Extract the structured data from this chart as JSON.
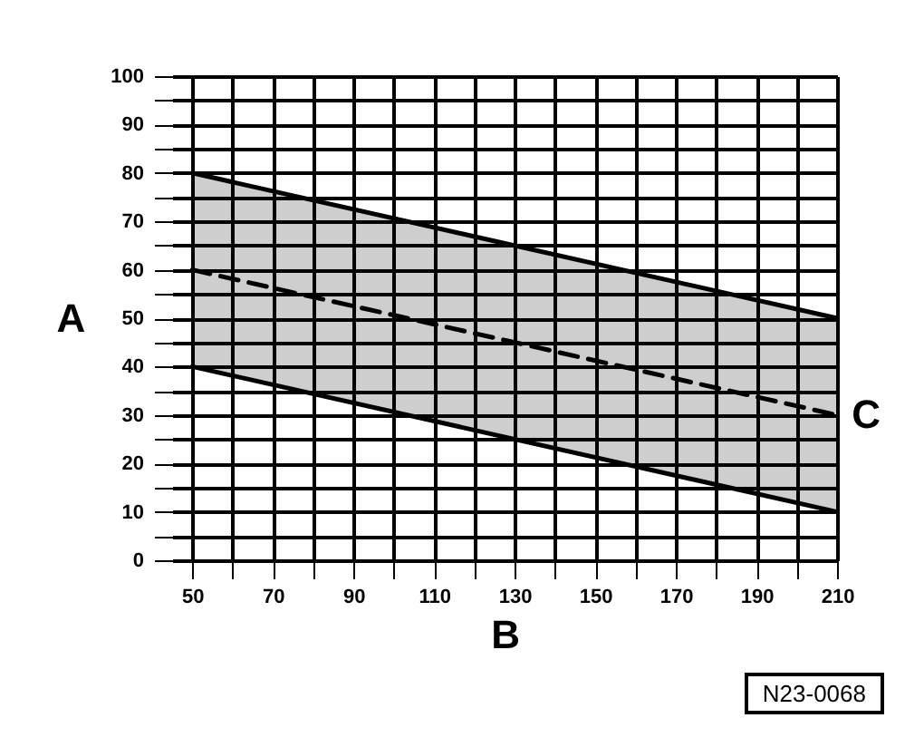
{
  "chart_data": {
    "type": "line",
    "xlabel": "B",
    "ylabel": "A",
    "annotations": [
      {
        "text": "C",
        "x": 210,
        "y": 30
      },
      "N23-0068"
    ],
    "x": [
      50,
      210
    ],
    "xlim": [
      45,
      210
    ],
    "ylim": [
      0,
      100
    ],
    "xticks": [
      50,
      {
        "value": 60,
        "label": null
      },
      70,
      {
        "value": 80,
        "label": null
      },
      90,
      {
        "value": 100,
        "label": null
      },
      110,
      {
        "value": 120,
        "label": null
      },
      130,
      {
        "value": 140,
        "label": null
      },
      150,
      {
        "value": 160,
        "label": null
      },
      170,
      {
        "value": 180,
        "label": null
      },
      190,
      {
        "value": 200,
        "label": null
      },
      210
    ],
    "yticks": [
      0,
      {
        "value": 5,
        "label": null
      },
      10,
      {
        "value": 15,
        "label": null
      },
      20,
      {
        "value": 25,
        "label": null
      },
      30,
      {
        "value": 35,
        "label": null
      },
      40,
      {
        "value": 45,
        "label": null
      },
      50,
      {
        "value": 55,
        "label": null
      },
      60,
      {
        "value": 65,
        "label": null
      },
      70,
      {
        "value": 75,
        "label": null
      },
      80,
      {
        "value": 85,
        "label": null
      },
      90,
      {
        "value": 95,
        "label": null
      },
      100
    ],
    "grid": true,
    "series": [
      {
        "color": "#000000",
        "values": [
          80,
          50
        ]
      },
      {
        "color": "#000000",
        "values": [
          60,
          30
        ],
        "line_style": "dashed",
        "lower": [
          40,
          10
        ],
        "upper": [
          80,
          50
        ]
      },
      {
        "color": "#000000",
        "values": [
          40,
          10
        ]
      }
    ]
  }
}
